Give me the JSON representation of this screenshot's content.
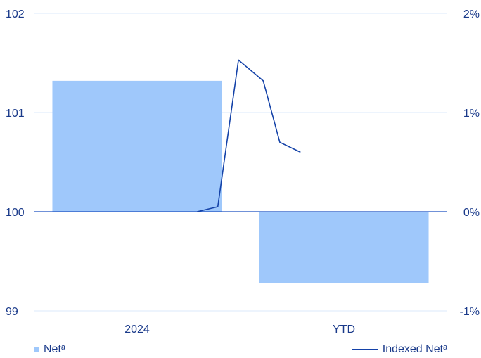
{
  "chart_data": {
    "type": "bar",
    "categories": [
      "2024",
      "YTD"
    ],
    "bar_series": {
      "name": "Netᵃ",
      "values": [
        1.32,
        -0.72
      ],
      "color": "#9fc8fb"
    },
    "line_series": {
      "name": "Indexed Netᵃ",
      "color": "#1442a8",
      "x": [
        0.79,
        0.89,
        0.99,
        1.11,
        1.19,
        1.29
      ],
      "values": [
        100.0,
        100.05,
        101.53,
        101.32,
        100.7,
        100.6
      ]
    },
    "left_axis": {
      "ylim": [
        99,
        102
      ],
      "ticks": [
        "102",
        "101",
        "100",
        "99"
      ],
      "tick_values": [
        102,
        101,
        100,
        99
      ]
    },
    "right_axis": {
      "ylim": [
        -1,
        2
      ],
      "ticks": [
        "2%",
        "1%",
        "0%",
        "-1%"
      ],
      "tick_values": [
        2,
        1,
        0,
        -1
      ]
    },
    "grid": true,
    "legend_position": "bottom"
  },
  "legend": {
    "bar_label": "Netᵃ",
    "line_label": "Indexed Netᵃ"
  }
}
